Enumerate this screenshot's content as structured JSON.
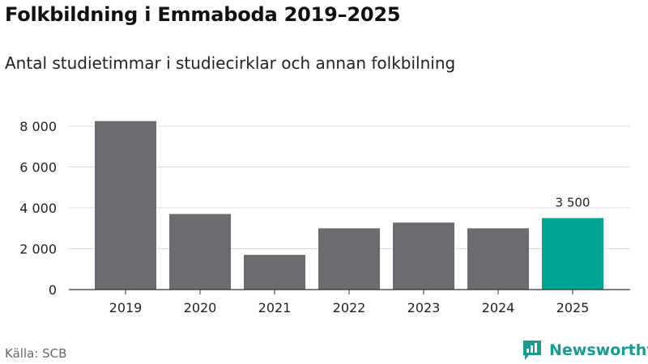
{
  "title": "Folkbildning i Emmaboda 2019–2025",
  "subtitle": "Antal studietimmar i studiecirklar och annan folkbilning",
  "source": "Källa: SCB",
  "brand": "Newsworthy",
  "colors": {
    "bar": "#6d6b70",
    "highlight": "#02a295",
    "brand": "#189b90",
    "grid": "#dddddd",
    "axis": "#333333"
  },
  "icons": [
    "newsworthy-logo-icon"
  ],
  "chart_data": {
    "type": "bar",
    "title": "Folkbildning i Emmaboda 2019–2025",
    "subtitle": "Antal studietimmar i studiecirklar och annan folkbilning",
    "xlabel": "",
    "ylabel": "",
    "categories": [
      "2019",
      "2020",
      "2021",
      "2022",
      "2023",
      "2024",
      "2025"
    ],
    "values": [
      8250,
      3700,
      1700,
      3000,
      3280,
      3000,
      3500
    ],
    "highlight_category": "2025",
    "annotations": [
      {
        "category": "2025",
        "text": "3 500"
      }
    ],
    "ylim": [
      0,
      8000
    ],
    "yticks": [
      0,
      2000,
      4000,
      6000,
      8000
    ],
    "ytick_labels": [
      "0",
      "2 000",
      "4 000",
      "6 000",
      "8 000"
    ],
    "grid": true,
    "legend": "none"
  }
}
